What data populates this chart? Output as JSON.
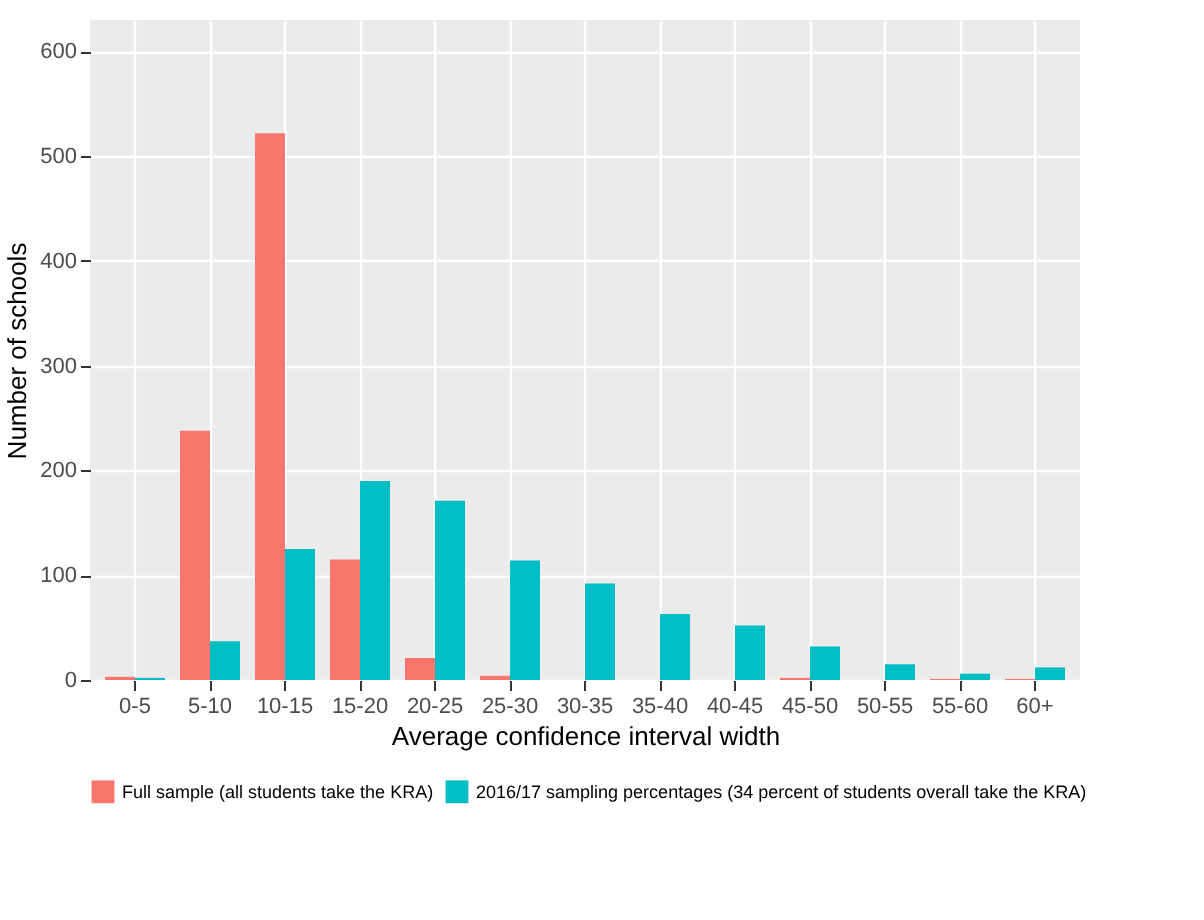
{
  "chart_data": {
    "type": "bar",
    "xlabel": "Average confidence interval width",
    "ylabel": "Number of schools",
    "categories": [
      "0-5",
      "5-10",
      "10-15",
      "15-20",
      "20-25",
      "25-30",
      "30-35",
      "35-40",
      "40-45",
      "45-50",
      "50-55",
      "55-60",
      "60+"
    ],
    "series": [
      {
        "name": "Full sample (all students take the KRA)",
        "color": "#f8766d",
        "values": [
          3,
          238,
          522,
          115,
          21,
          4,
          0,
          0,
          0,
          2,
          0,
          1,
          1
        ]
      },
      {
        "name": "2016/17 sampling percentages (34 percent of students overall take the KRA)",
        "color": "#00bfc4",
        "values": [
          2,
          37,
          125,
          190,
          171,
          114,
          92,
          63,
          52,
          32,
          15,
          6,
          12
        ]
      }
    ],
    "ylim": [
      0,
      630
    ],
    "yticks": [
      0,
      100,
      200,
      300,
      400,
      500,
      600
    ],
    "grid": true,
    "legend": "bottom"
  }
}
